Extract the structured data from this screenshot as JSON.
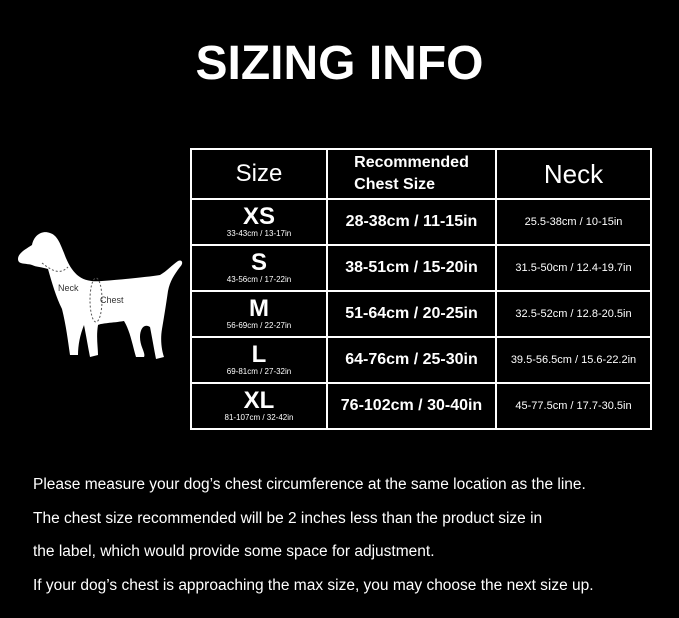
{
  "title": "SIZING INFO",
  "table": {
    "headers": {
      "size": "Size",
      "chest": "Recommended Chest Size",
      "chest_line1": "Recommended",
      "chest_line2": "Chest Size",
      "neck": "Neck"
    },
    "rows": [
      {
        "size": "XS",
        "range": "33-43cm / 13-17in",
        "chest": "28-38cm / 11-15in",
        "neck": "25.5-38cm / 10-15in"
      },
      {
        "size": "S",
        "range": "43-56cm / 17-22in",
        "chest": "38-51cm / 15-20in",
        "neck": "31.5-50cm / 12.4-19.7in"
      },
      {
        "size": "M",
        "range": "56-69cm / 22-27in",
        "chest": "51-64cm / 20-25in",
        "neck": "32.5-52cm / 12.8-20.5in"
      },
      {
        "size": "L",
        "range": "69-81cm / 27-32in",
        "chest": "64-76cm / 25-30in",
        "neck": "39.5-56.5cm / 15.6-22.2in"
      },
      {
        "size": "XL",
        "range": "81-107cm / 32-42in",
        "chest": "76-102cm / 30-40in",
        "neck": "45-77.5cm / 17.7-30.5in"
      }
    ]
  },
  "dog": {
    "neck_label": "Neck",
    "chest_label": "Chest"
  },
  "notes": [
    "Please measure your dog’s chest circumference at the same location as the line.",
    "The chest size recommended will be 2 inches less than the product size in",
    "the label, which would provide some space for adjustment.",
    "If your dog’s chest is approaching the max size, you may choose the next size up."
  ]
}
